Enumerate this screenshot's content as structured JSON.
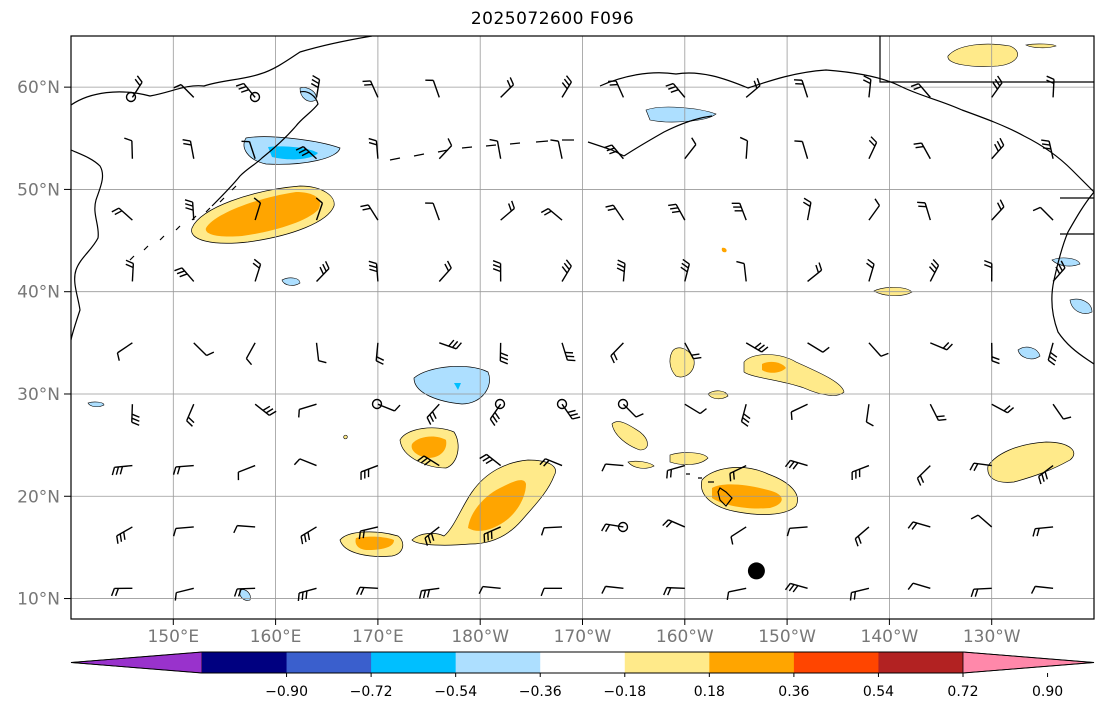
{
  "title": "2025072600 F096",
  "map": {
    "latitude_labels": [
      "60°N",
      "50°N",
      "40°N",
      "30°N",
      "20°N",
      "10°N"
    ],
    "latitude_values": [
      60,
      50,
      40,
      30,
      20,
      10
    ],
    "longitude_labels": [
      "150°E",
      "160°E",
      "170°E",
      "180°W",
      "170°W",
      "160°W",
      "150°W",
      "140°W",
      "130°W"
    ],
    "longitude_values": [
      150,
      160,
      170,
      180,
      190,
      200,
      210,
      220,
      230
    ],
    "extent": {
      "lon_min": 140,
      "lon_max": 240,
      "lat_min": 8,
      "lat_max": 65
    },
    "tropical_cyclone_marker": {
      "lon": 207,
      "lat": 12.7,
      "color": "#000000"
    },
    "colors": {
      "land_outline": "#000000",
      "grid": "#999999",
      "barb": "#000000"
    }
  },
  "colorbar": {
    "tick_labels": [
      "−0.90",
      "−0.72",
      "−0.54",
      "−0.36",
      "−0.18",
      "0.18",
      "0.36",
      "0.54",
      "0.72",
      "0.90"
    ],
    "tick_values": [
      -0.9,
      -0.72,
      -0.54,
      -0.36,
      -0.18,
      0.18,
      0.36,
      0.54,
      0.72,
      0.9
    ],
    "extend_low_color": "#9932CC",
    "extend_high_color": "#FF88AA",
    "bin_colors": [
      "#000080",
      "#3A5FCD",
      "#00BFFF",
      "#ADDFFF",
      "#FFFFFF",
      "#FFEA8A",
      "#FFA500",
      "#FF4500",
      "#B22222"
    ]
  }
}
